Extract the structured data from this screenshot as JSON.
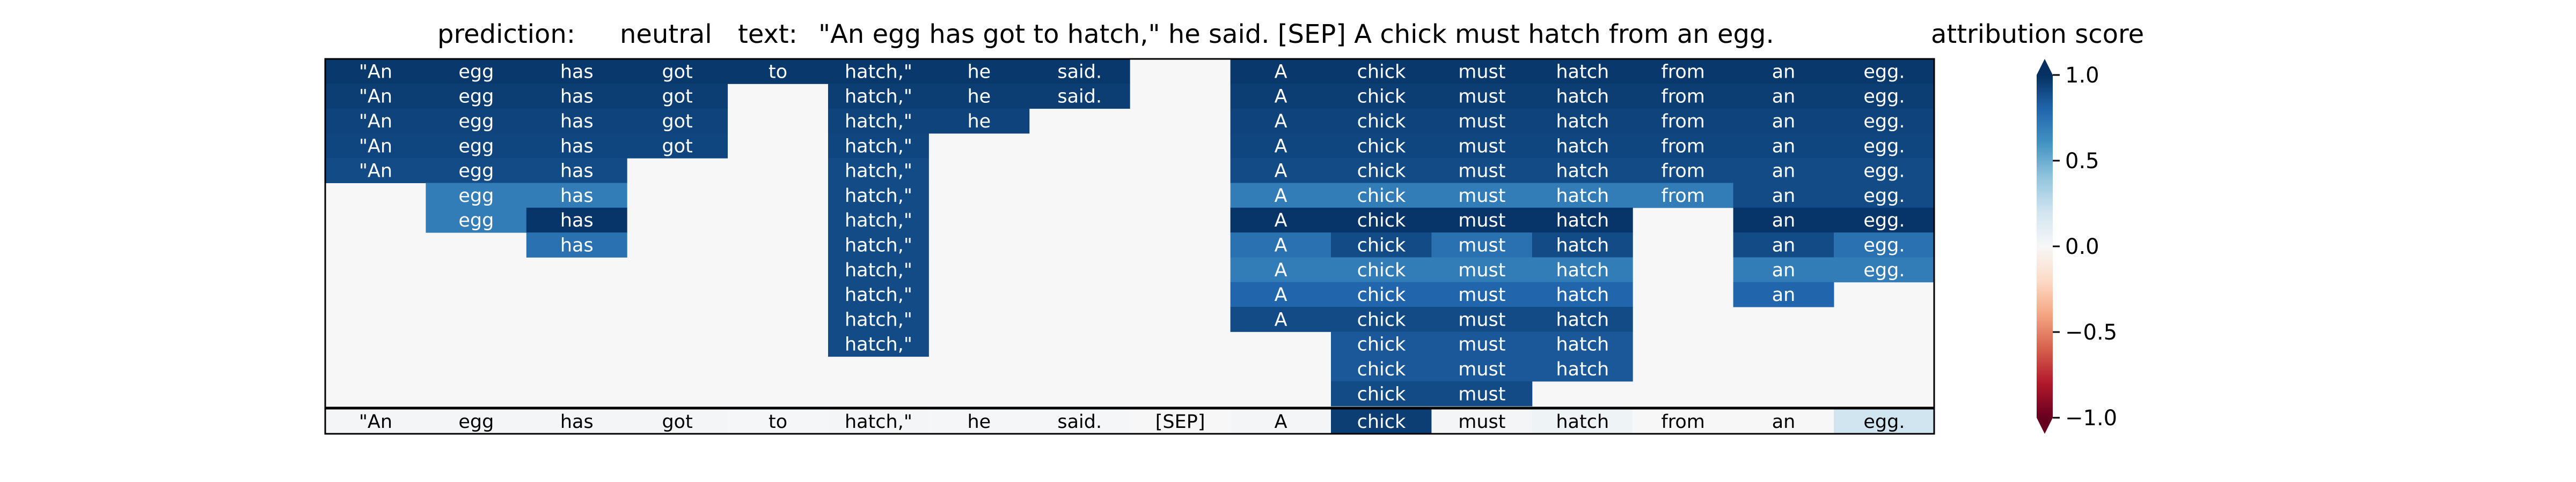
{
  "header": {
    "prediction_label": "prediction:",
    "prediction_value": "neutral",
    "text_label": "text:",
    "text_value": "\"An egg has got to hatch,\" he said. [SEP] A chick must hatch from an egg.",
    "colorbar_title": "attribution score"
  },
  "chart_data": {
    "type": "heatmap",
    "title": "",
    "xlabel": "",
    "ylabel": "",
    "tokens": [
      "\"An",
      "egg",
      "has",
      "got",
      "to",
      "hatch,\"",
      "he",
      "said.",
      "[SEP]",
      "A",
      "chick",
      "must",
      "hatch",
      "from",
      "an",
      "egg."
    ],
    "colorbar": {
      "vmin": -1.0,
      "vmax": 1.0,
      "ticks": [
        "1.0",
        "0.5",
        "0.0",
        "−0.5",
        "−1.0"
      ],
      "colormap": "RdBu",
      "extend": "both"
    },
    "rows": [
      [
        0.97,
        0.97,
        0.97,
        0.97,
        0.97,
        0.97,
        0.97,
        0.97,
        null,
        0.97,
        0.97,
        0.97,
        0.97,
        0.97,
        0.97,
        0.97
      ],
      [
        0.95,
        0.95,
        0.95,
        0.95,
        null,
        0.95,
        0.95,
        0.95,
        null,
        0.95,
        0.95,
        0.95,
        0.95,
        0.95,
        0.95,
        0.95
      ],
      [
        0.93,
        0.93,
        0.93,
        0.93,
        null,
        0.93,
        0.93,
        null,
        null,
        0.93,
        0.93,
        0.93,
        0.93,
        0.93,
        0.93,
        0.93
      ],
      [
        0.92,
        0.92,
        0.92,
        0.92,
        null,
        0.92,
        null,
        null,
        null,
        0.92,
        0.92,
        0.92,
        0.92,
        0.92,
        0.92,
        0.92
      ],
      [
        0.9,
        0.9,
        0.9,
        null,
        null,
        0.9,
        null,
        null,
        null,
        0.9,
        0.9,
        0.9,
        0.9,
        0.9,
        0.9,
        0.9
      ],
      [
        null,
        0.7,
        0.7,
        null,
        null,
        0.9,
        null,
        null,
        null,
        0.7,
        0.7,
        0.7,
        0.7,
        0.7,
        0.9,
        0.9
      ],
      [
        null,
        0.7,
        0.98,
        null,
        null,
        0.9,
        null,
        null,
        null,
        0.98,
        0.98,
        0.98,
        0.98,
        null,
        0.98,
        0.98
      ],
      [
        null,
        null,
        0.75,
        null,
        null,
        0.9,
        null,
        null,
        null,
        0.75,
        0.9,
        0.75,
        0.9,
        null,
        0.9,
        0.75
      ],
      [
        null,
        null,
        null,
        null,
        null,
        0.9,
        null,
        null,
        null,
        0.7,
        0.7,
        0.7,
        0.7,
        null,
        0.7,
        0.7
      ],
      [
        null,
        null,
        null,
        null,
        null,
        0.9,
        null,
        null,
        null,
        0.8,
        0.8,
        0.8,
        0.8,
        null,
        0.8,
        null
      ],
      [
        null,
        null,
        null,
        null,
        null,
        0.9,
        null,
        null,
        null,
        0.9,
        0.9,
        0.9,
        0.9,
        null,
        null,
        null
      ],
      [
        null,
        null,
        null,
        null,
        null,
        0.9,
        null,
        null,
        null,
        null,
        0.85,
        0.85,
        0.85,
        null,
        null,
        null
      ],
      [
        null,
        null,
        null,
        null,
        null,
        null,
        null,
        null,
        null,
        null,
        0.85,
        0.85,
        0.85,
        null,
        null,
        null
      ],
      [
        null,
        null,
        null,
        null,
        null,
        null,
        null,
        null,
        null,
        null,
        0.9,
        0.9,
        null,
        null,
        null,
        null
      ]
    ],
    "summary_row": [
      0.02,
      0.02,
      0.02,
      0.02,
      0.01,
      0.02,
      0.01,
      0.01,
      0.0,
      0.02,
      0.95,
      0.02,
      0.05,
      0.0,
      0.0,
      0.2
    ]
  }
}
